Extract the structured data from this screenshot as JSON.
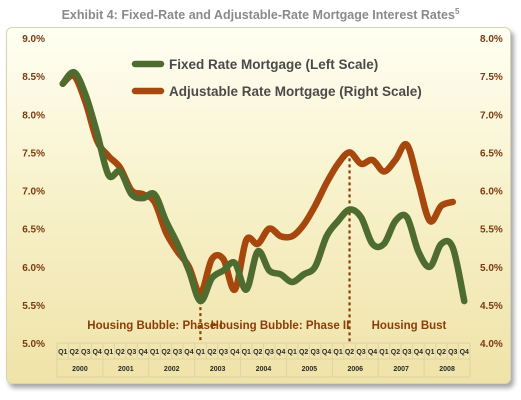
{
  "header": {
    "title": "Exhibit 4: Fixed-Rate and Adjustable-Rate Mortgage Interest Rates",
    "footnote": "5"
  },
  "colors": {
    "fixed": "#4e6b30",
    "adjustable": "#a6470e",
    "axis_text": "#7a3a10",
    "phase_text": "#8b3d08",
    "grid": "#dcd3a6"
  },
  "chart_data": {
    "type": "line",
    "title": "Exhibit 4: Fixed-Rate and Adjustable-Rate Mortgage Interest Rates",
    "quarters": [
      "Q1",
      "Q2",
      "Q3",
      "Q4"
    ],
    "years": [
      "2000",
      "2001",
      "2002",
      "2003",
      "2004",
      "2005",
      "2006",
      "2007",
      "2008"
    ],
    "left_axis": {
      "ylim": [
        5.0,
        9.0
      ],
      "ticks": [
        "5.0%",
        "5.5%",
        "6.0%",
        "6.5%",
        "7.0%",
        "7.5%",
        "8.0%",
        "8.5%",
        "9.0%"
      ]
    },
    "right_axis": {
      "ylim": [
        4.0,
        8.0
      ],
      "ticks": [
        "4.0%",
        "4.5%",
        "5.0%",
        "5.5%",
        "6.0%",
        "6.5%",
        "7.0%",
        "7.5%",
        "8.0%"
      ]
    },
    "series": [
      {
        "name": "Fixed Rate Mortgage (Left Scale)",
        "axis": "left",
        "values": [
          8.4,
          8.55,
          8.25,
          7.75,
          7.2,
          7.25,
          6.95,
          6.9,
          6.95,
          6.6,
          6.3,
          5.95,
          5.55,
          5.85,
          5.95,
          6.05,
          5.7,
          6.2,
          5.95,
          5.9,
          5.8,
          5.9,
          6.0,
          6.4,
          6.6,
          6.75,
          6.65,
          6.3,
          6.3,
          6.6,
          6.65,
          6.2,
          6.0,
          6.3,
          6.25,
          5.55
        ]
      },
      {
        "name": "Adjustable Rate Mortgage (Right Scale)",
        "axis": "right",
        "values": [
          7.4,
          7.5,
          7.15,
          6.65,
          6.45,
          6.3,
          6.0,
          5.95,
          5.85,
          5.45,
          5.2,
          5.0,
          4.65,
          5.1,
          5.1,
          4.7,
          5.35,
          5.3,
          5.5,
          5.4,
          5.4,
          5.55,
          5.8,
          6.1,
          6.35,
          6.5,
          6.35,
          6.4,
          6.25,
          6.4,
          6.6,
          6.1,
          5.6,
          5.8,
          5.85,
          null
        ]
      }
    ],
    "annotations": [
      {
        "text": "Housing Bubble: Phase I",
        "divider_after_quarter": 12
      },
      {
        "text": "Housing Bubble: Phase II",
        "divider_after_quarter": 25
      },
      {
        "text": "Housing Bust"
      }
    ],
    "legend_placement": "top-center",
    "grid": false
  }
}
